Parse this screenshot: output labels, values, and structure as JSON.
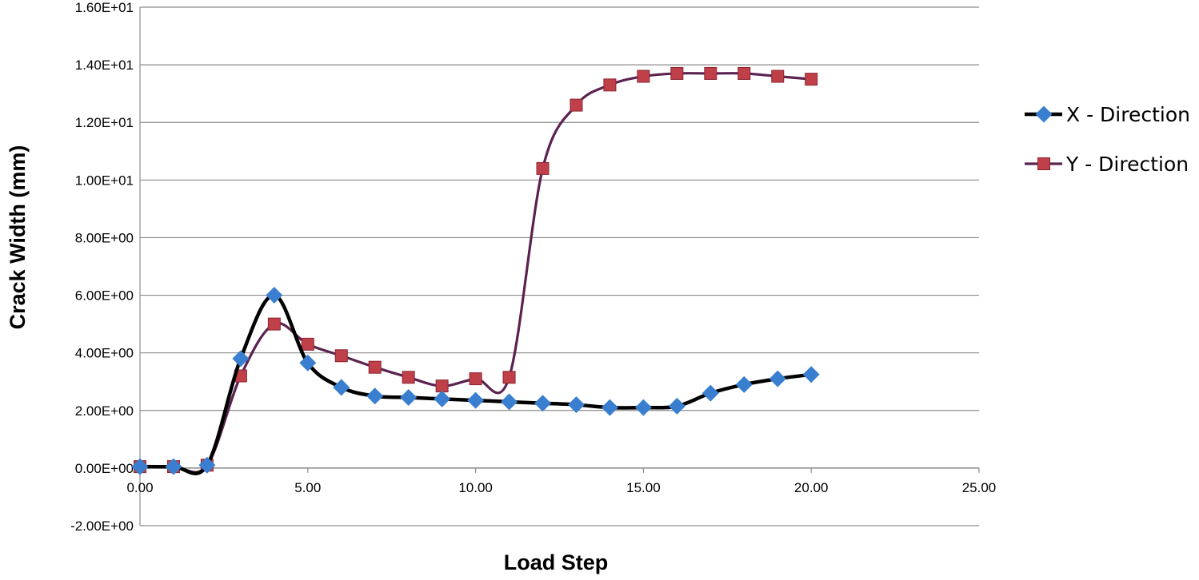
{
  "chart_data": {
    "type": "scatter",
    "xlabel": "Load Step",
    "ylabel": "Crack Width (mm)",
    "xlim": [
      0,
      25
    ],
    "ylim": [
      -2,
      16
    ],
    "x_ticks": [
      0,
      5,
      10,
      15,
      20,
      25
    ],
    "x_tick_labels": [
      "0.00",
      "5.00",
      "10.00",
      "15.00",
      "20.00",
      "25.00"
    ],
    "y_ticks": [
      -2,
      0,
      2,
      4,
      6,
      8,
      10,
      12,
      14,
      16
    ],
    "y_tick_labels": [
      "-2.00E+00",
      "0.00E+00",
      "2.00E+00",
      "4.00E+00",
      "6.00E+00",
      "8.00E+00",
      "1.00E+01",
      "1.20E+01",
      "1.40E+01",
      "1.60E+01"
    ],
    "grid": true,
    "legend_position": "right",
    "smoothed_lines": true,
    "series": [
      {
        "name": "X - Direction",
        "line_color": "#000000",
        "marker_color": "#3a7fcf",
        "marker": "diamond",
        "x": [
          0,
          1,
          2,
          3,
          4,
          5,
          6,
          7,
          8,
          9,
          10,
          11,
          12,
          13,
          14,
          15,
          16,
          17,
          18,
          19,
          20
        ],
        "y": [
          0.05,
          0.05,
          0.1,
          3.8,
          6.0,
          3.65,
          2.8,
          2.5,
          2.45,
          2.4,
          2.35,
          2.3,
          2.25,
          2.2,
          2.1,
          2.1,
          2.15,
          2.6,
          2.9,
          3.1,
          3.25
        ]
      },
      {
        "name": "Y - Direction",
        "line_color": "#5b2350",
        "marker_color": "#c0404a",
        "marker": "square",
        "x": [
          0,
          1,
          2,
          3,
          4,
          5,
          6,
          7,
          8,
          9,
          10,
          11,
          12,
          13,
          14,
          15,
          16,
          17,
          18,
          19,
          20
        ],
        "y": [
          0.05,
          0.05,
          0.1,
          3.2,
          5.0,
          4.3,
          3.9,
          3.5,
          3.15,
          2.85,
          3.1,
          3.15,
          10.4,
          12.6,
          13.3,
          13.6,
          13.7,
          13.7,
          13.7,
          13.6,
          13.5
        ]
      }
    ]
  }
}
